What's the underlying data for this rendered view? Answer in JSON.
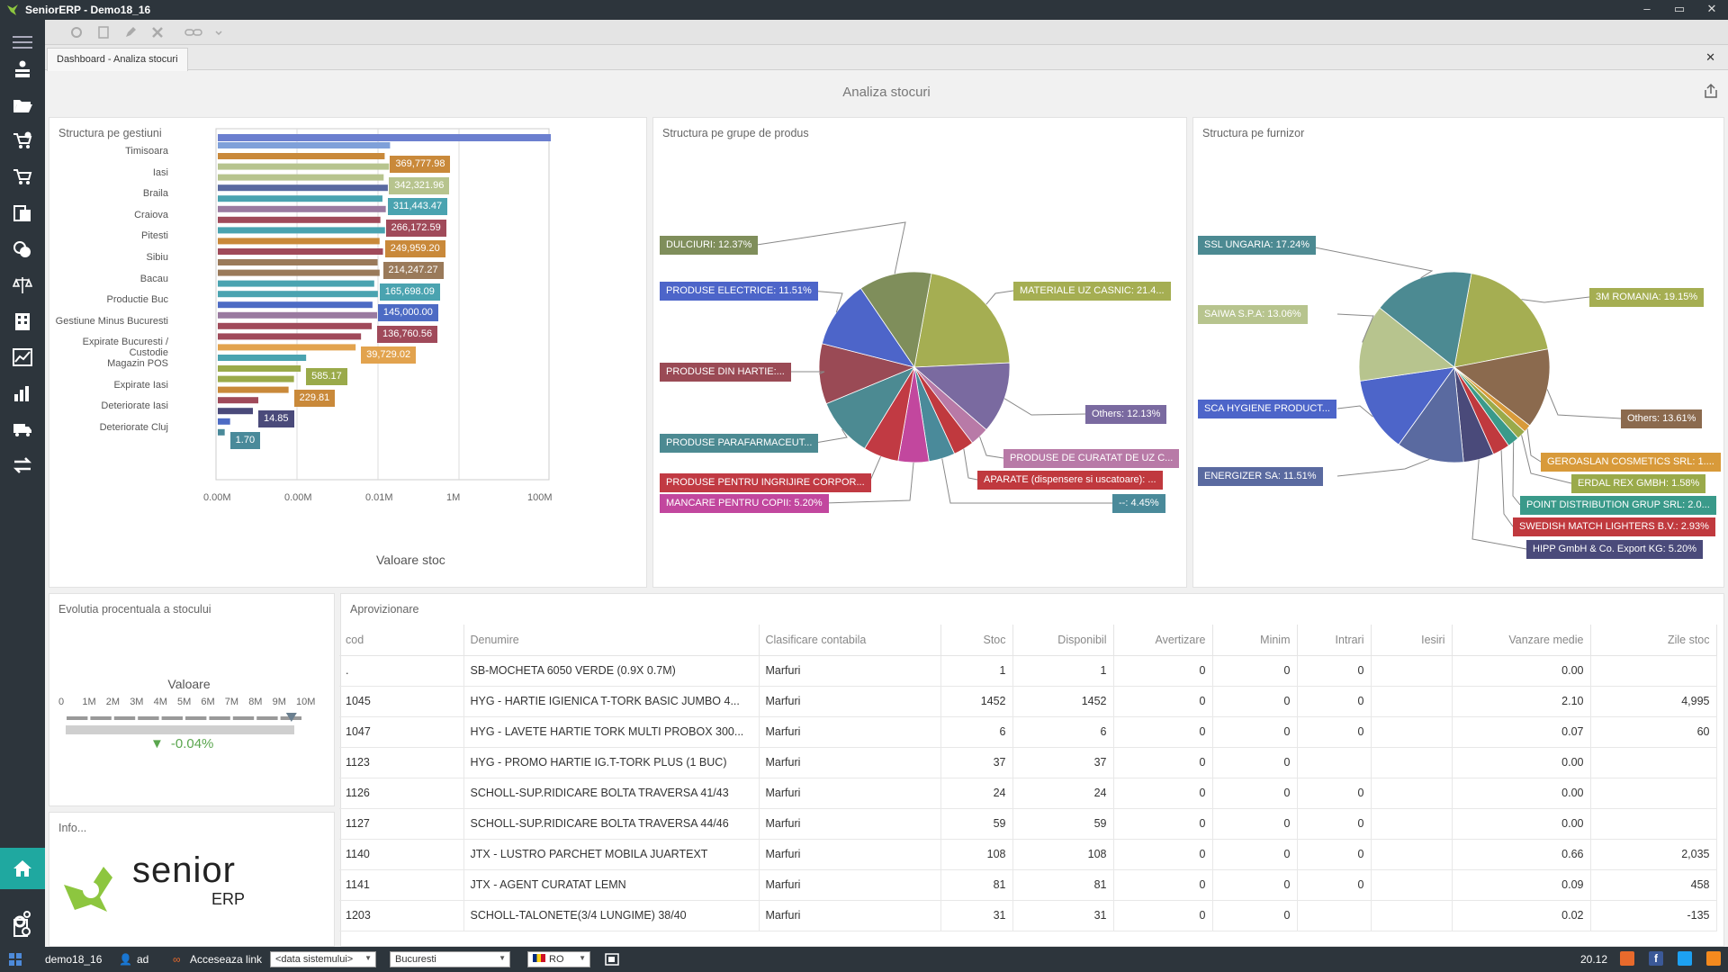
{
  "window": {
    "title": "SeniorERP - Demo18_16",
    "minimize": "–",
    "maximize": "▭",
    "close": "✕"
  },
  "tab": {
    "label": "Dashboard - Analiza stocuri",
    "close": "✕"
  },
  "page": {
    "title": "Analiza stocuri"
  },
  "panels": {
    "gestiuni": "Structura pe gestiuni",
    "grupe": "Structura pe grupe de produs",
    "furnizor": "Structura pe furnizor",
    "evolutia": "Evolutia procentuala a stocului",
    "info": "Info...",
    "aprov": "Aprovizionare"
  },
  "chart_data": [
    {
      "type": "bar",
      "title": "Structura pe gestiuni",
      "xlabel": "Valoare stoc",
      "ylabel": "",
      "scale": "log",
      "tick_labels": [
        "0.00M",
        "0.00M",
        "0.01M",
        "1M",
        "100M"
      ],
      "categories": [
        "Timisoara",
        "Iasi",
        "Braila",
        "Craiova",
        "Pitesti",
        "Sibiu",
        "Bacau",
        "Productie Buc",
        "Gestiune Minus Bucuresti",
        "Expirate Bucuresti / Custodie",
        "Magazin POS",
        "Expirate Iasi",
        "Deteriorate Iasi",
        "Deteriorate Cluj"
      ],
      "value_labels": [
        "369,777.98",
        "342,321.96",
        "311,443.47",
        "266,172.59",
        "249,959.20",
        "214,247.27",
        "165,698.09",
        "145,000.00",
        "136,760.56",
        "39,729.02",
        "585.17",
        "229.81",
        "14.85",
        "1.70"
      ],
      "values": [
        369777.98,
        342321.96,
        311443.47,
        266172.59,
        249959.2,
        214247.27,
        165698.09,
        145000.0,
        136760.56,
        39729.02,
        585.17,
        229.81,
        14.85,
        1.7
      ],
      "colors": [
        "#c9893a",
        "#b7c48e",
        "#4aa3b0",
        "#a04a5a",
        "#c9893a",
        "#9a7a5a",
        "#4aa3b0",
        "#4d6bc4",
        "#a04a5a",
        "#e2a34e",
        "#9aaa4a",
        "#c9893a",
        "#4a4a7a",
        "#4a8a9a"
      ]
    },
    {
      "type": "pie",
      "title": "Structura pe grupe de produs",
      "labels": [
        "DULCIURI: 12.37%",
        "PRODUSE ELECTRICE: 11.51%",
        "PRODUSE DIN HARTIE:...",
        "PRODUSE PARAFARMACEUT...",
        "PRODUSE PENTRU INGRIJIRE CORPOR...",
        "MANCARE PENTRU COPII: 5.20%",
        "MATERIALE UZ CASNIC: 21.4...",
        "Others: 12.13%",
        "PRODUSE DE CURATAT DE UZ C...",
        "APARATE (dispensere si uscatoare): ...",
        "--: 4.45%"
      ],
      "slices": [
        {
          "name": "MATERIALE UZ CASNIC",
          "value": 21.4,
          "color": "#a5ae52"
        },
        {
          "name": "Others",
          "value": 12.13,
          "color": "#7a6aa0"
        },
        {
          "name": "PRODUSE DE CURATAT DE UZ C",
          "value": 3.2,
          "color": "#b87aa7"
        },
        {
          "name": "APARATE (dispensere si uscatoare)",
          "value": 3.5,
          "color": "#c0393e"
        },
        {
          "name": "--",
          "value": 4.45,
          "color": "#4a8a9a"
        },
        {
          "name": "MANCARE PENTRU COPII",
          "value": 5.2,
          "color": "#c2479e"
        },
        {
          "name": "PRODUSE PENTRU INGRIJIRE CORPOR",
          "value": 6.0,
          "color": "#c13a43"
        },
        {
          "name": "PRODUSE PARAFARMACEUT",
          "value": 10.0,
          "color": "#4c8a92"
        },
        {
          "name": "PRODUSE DIN HARTIE",
          "value": 10.24,
          "color": "#9a4a55"
        },
        {
          "name": "PRODUSE ELECTRICE",
          "value": 11.51,
          "color": "#4d65c9"
        },
        {
          "name": "DULCIURI",
          "value": 12.37,
          "color": "#7f8e5b"
        }
      ]
    },
    {
      "type": "pie",
      "title": "Structura pe furnizor",
      "labels": [
        "SSL UNGARIA: 17.24%",
        "SAIWA S.P.A: 13.06%",
        "SCA HYGIENE PRODUCT...",
        "ENERGIZER SA: 11.51%",
        "3M ROMANIA: 19.15%",
        "Others: 13.61%",
        "GEROASLAN COSMETICS SRL: 1....",
        "ERDAL REX GMBH: 1.58%",
        "POINT DISTRIBUTION GRUP SRL: 2.0...",
        "SWEDISH MATCH LIGHTERS B.V.: 2.93%",
        "HIPP GmbH & Co. Export KG: 5.20%"
      ],
      "slices": [
        {
          "name": "3M ROMANIA",
          "value": 19.15,
          "color": "#a5ae52"
        },
        {
          "name": "Others",
          "value": 13.61,
          "color": "#8b6a4e"
        },
        {
          "name": "GEROASLAN COSMETICS SRL",
          "value": 1.3,
          "color": "#d89a3a"
        },
        {
          "name": "ERDAL REX GMBH",
          "value": 1.58,
          "color": "#9aaa4a"
        },
        {
          "name": "POINT DISTRIBUTION GRUP SRL",
          "value": 2.0,
          "color": "#3a9a8a"
        },
        {
          "name": "SWEDISH MATCH LIGHTERS B.V.",
          "value": 2.93,
          "color": "#c0393e"
        },
        {
          "name": "HIPP GmbH & Co. Export KG",
          "value": 5.2,
          "color": "#4a4a7a"
        },
        {
          "name": "ENERGIZER SA",
          "value": 11.51,
          "color": "#5a6aa0"
        },
        {
          "name": "SCA HYGIENE PRODUCT",
          "value": 12.8,
          "color": "#4d65c9"
        },
        {
          "name": "SAIWA S.P.A",
          "value": 13.06,
          "color": "#b7c48e"
        },
        {
          "name": "SSL UNGARIA",
          "value": 17.24,
          "color": "#4c8a92"
        }
      ]
    },
    {
      "type": "gauge",
      "title": "Evolutia procentuala a stocului",
      "label": "Valoare",
      "ticks": [
        "0",
        "1M",
        "2M",
        "3M",
        "4M",
        "5M",
        "6M",
        "7M",
        "8M",
        "9M",
        "10M"
      ],
      "marker_value": 9.5,
      "delta": "-0.04%"
    }
  ],
  "table": {
    "columns": [
      "cod",
      "Denumire",
      "Clasificare contabila",
      "Stoc",
      "Disponibil",
      "Avertizare",
      "Minim",
      "Intrari",
      "Iesiri",
      "Vanzare medie",
      "Zile stoc"
    ],
    "rows": [
      [
        ".",
        "SB-MOCHETA 6050 VERDE (0.9X 0.7M)",
        "Marfuri",
        "1",
        "1",
        "0",
        "0",
        "0",
        "",
        "0.00",
        ""
      ],
      [
        "1045",
        "HYG - HARTIE IGIENICA T-TORK BASIC JUMBO 4...",
        "Marfuri",
        "1452",
        "1452",
        "0",
        "0",
        "0",
        "",
        "2.10",
        "4,995"
      ],
      [
        "1047",
        "HYG - LAVETE HARTIE TORK MULTI PROBOX 300...",
        "Marfuri",
        "6",
        "6",
        "0",
        "0",
        "0",
        "",
        "0.07",
        "60"
      ],
      [
        "1123",
        "HYG - PROMO HARTIE IG.T-TORK PLUS (1 BUC)",
        "Marfuri",
        "37",
        "37",
        "0",
        "0",
        "",
        "",
        "0.00",
        ""
      ],
      [
        "1126",
        "SCHOLL-SUP.RIDICARE BOLTA TRAVERSA 41/43",
        "Marfuri",
        "24",
        "24",
        "0",
        "0",
        "0",
        "",
        "0.00",
        ""
      ],
      [
        "1127",
        "SCHOLL-SUP.RIDICARE BOLTA TRAVERSA 44/46",
        "Marfuri",
        "59",
        "59",
        "0",
        "0",
        "0",
        "",
        "0.00",
        ""
      ],
      [
        "1140",
        "JTX - LUSTRO PARCHET MOBILA JUARTEXT",
        "Marfuri",
        "108",
        "108",
        "0",
        "0",
        "0",
        "",
        "0.66",
        "2,035"
      ],
      [
        "1141",
        "JTX - AGENT CURATAT LEMN",
        "Marfuri",
        "81",
        "81",
        "0",
        "0",
        "0",
        "",
        "0.09",
        "458"
      ],
      [
        "1203",
        "SCHOLL-TALONETE(3/4 LUNGIME) 38/40",
        "Marfuri",
        "31",
        "31",
        "0",
        "0",
        "",
        "",
        "0.02",
        "-135"
      ]
    ]
  },
  "info": {
    "brand": "senior",
    "sub": "ERP"
  },
  "status": {
    "db": "demo18_16",
    "user": "ad",
    "link": "Acceseaza link",
    "date_combo": "<data sistemului>",
    "city_combo": "Bucuresti",
    "lang": "RO",
    "time": "20.12"
  }
}
